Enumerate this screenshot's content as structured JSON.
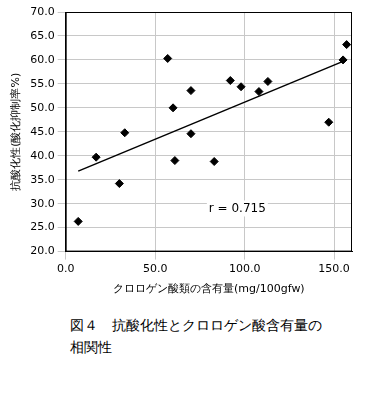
{
  "chart_data": {
    "type": "scatter",
    "caption": "図４　抗酸化性とクロロゲン酸含有量の相関性",
    "x_label": "クロロゲン酸類の含有量(mg/100gfw)",
    "y_label": "抗酸化性(酸化抑制率%)",
    "annotations": [
      "r = 0.715"
    ],
    "x": [
      7,
      17,
      30,
      33,
      57,
      60,
      61,
      70,
      70,
      83,
      92,
      98,
      108,
      113,
      147,
      155,
      157
    ],
    "values": [
      26.3,
      39.7,
      34.2,
      44.8,
      60.3,
      50.0,
      39.0,
      53.6,
      44.6,
      38.8,
      55.7,
      54.4,
      53.4,
      55.5,
      47.0,
      60.0,
      63.2
    ],
    "trend_line": {
      "x": [
        7,
        157
      ],
      "y": [
        36.8,
        60.0
      ]
    },
    "color": "#000000",
    "marker": "diamond",
    "xlim": [
      0,
      160
    ],
    "xticks": [
      {
        "value": 0,
        "label": "0.0"
      },
      {
        "value": 50,
        "label": "50.0"
      },
      {
        "value": 100,
        "label": "100.0"
      },
      {
        "value": 150,
        "label": "150.0"
      }
    ],
    "ylim": [
      20,
      70
    ],
    "yticks": [
      {
        "value": 20,
        "label": "20.0"
      },
      {
        "value": 25,
        "label": "25.0"
      },
      {
        "value": 30,
        "label": "30.0"
      },
      {
        "value": 35,
        "label": "35.0"
      },
      {
        "value": 40,
        "label": "40.0"
      },
      {
        "value": 45,
        "label": "45.0"
      },
      {
        "value": 50,
        "label": "50.0"
      },
      {
        "value": 55,
        "label": "55.0"
      },
      {
        "value": 60,
        "label": "60.0"
      },
      {
        "value": 65,
        "label": "65.0"
      },
      {
        "value": 70,
        "label": "70.0"
      }
    ],
    "grid": true,
    "legend": false
  }
}
